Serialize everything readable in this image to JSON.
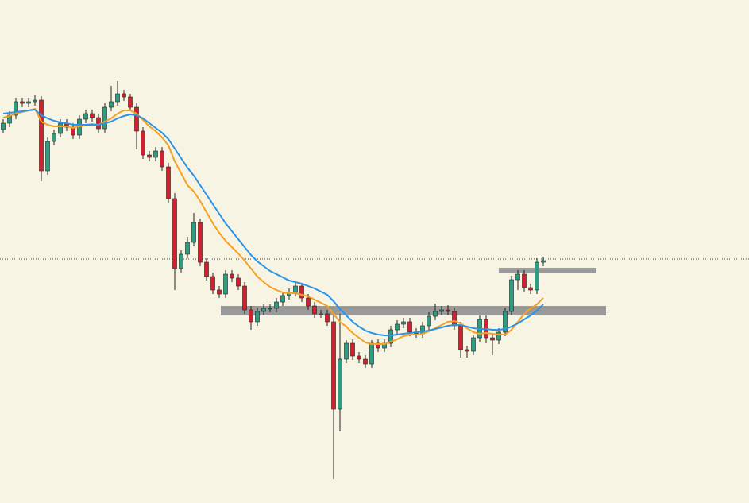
{
  "chart_data": {
    "type": "candlestick",
    "up_color": "#2a9d83",
    "down_color": "#d2202f",
    "wick_color": "#222222",
    "zone_color": "#9a9a9a",
    "level_color": "#444444",
    "open": [
      470,
      478,
      488,
      505,
      503,
      505,
      507,
      418,
      455,
      465,
      478,
      473,
      463,
      483,
      490,
      485,
      471,
      498,
      505,
      515,
      511,
      498,
      468,
      438,
      435,
      443,
      423,
      383,
      295,
      313,
      328,
      353,
      303,
      285,
      268,
      263,
      288,
      283,
      273,
      243,
      228,
      241,
      245,
      245,
      253,
      261,
      265,
      273,
      258,
      248,
      238,
      238,
      228,
      118,
      181,
      201,
      185,
      181,
      175,
      201,
      195,
      201,
      218,
      225,
      228,
      215,
      213,
      223,
      235,
      241,
      243,
      241,
      223,
      193,
      191,
      208,
      231,
      208,
      205,
      215,
      241,
      281,
      288,
      271,
      268,
      303
    ],
    "high": [
      483,
      493,
      510,
      510,
      510,
      513,
      512,
      460,
      470,
      483,
      483,
      478,
      488,
      495,
      495,
      490,
      503,
      525,
      531,
      520,
      515,
      503,
      473,
      443,
      448,
      448,
      428,
      390,
      318,
      335,
      365,
      358,
      308,
      290,
      273,
      293,
      293,
      288,
      278,
      248,
      246,
      250,
      250,
      258,
      266,
      270,
      278,
      276,
      263,
      253,
      243,
      243,
      238,
      238,
      205,
      206,
      190,
      186,
      205,
      206,
      206,
      223,
      230,
      233,
      233,
      220,
      228,
      240,
      251,
      248,
      249,
      246,
      228,
      198,
      211,
      236,
      236,
      213,
      220,
      246,
      286,
      293,
      293,
      276,
      308,
      310
    ],
    "low": [
      465,
      473,
      483,
      498,
      498,
      500,
      405,
      413,
      450,
      460,
      468,
      458,
      458,
      478,
      480,
      466,
      466,
      493,
      500,
      506,
      493,
      445,
      433,
      430,
      430,
      418,
      378,
      268,
      290,
      308,
      323,
      298,
      280,
      263,
      258,
      258,
      278,
      268,
      238,
      218,
      223,
      236,
      240,
      240,
      248,
      256,
      260,
      253,
      243,
      233,
      233,
      223,
      30,
      90,
      176,
      180,
      176,
      170,
      170,
      190,
      190,
      196,
      213,
      220,
      210,
      208,
      208,
      218,
      230,
      236,
      236,
      218,
      183,
      183,
      186,
      203,
      201,
      186,
      200,
      210,
      236,
      268,
      266,
      263,
      263,
      298
    ],
    "close": [
      478,
      488,
      505,
      503,
      505,
      507,
      418,
      455,
      465,
      478,
      473,
      463,
      483,
      490,
      485,
      471,
      498,
      505,
      515,
      511,
      498,
      468,
      438,
      435,
      443,
      423,
      383,
      295,
      313,
      328,
      353,
      303,
      285,
      268,
      263,
      288,
      283,
      273,
      243,
      228,
      241,
      245,
      245,
      253,
      261,
      265,
      273,
      258,
      248,
      238,
      238,
      228,
      118,
      181,
      201,
      185,
      181,
      175,
      201,
      195,
      201,
      218,
      225,
      228,
      215,
      213,
      223,
      235,
      241,
      243,
      241,
      223,
      193,
      191,
      208,
      231,
      208,
      205,
      215,
      241,
      281,
      288,
      271,
      268,
      303,
      305
    ],
    "series": [
      {
        "color": "#f5a020",
        "values": [
          485,
          487,
          490,
          492,
          494,
          496,
          480,
          476,
          474,
          474,
          474,
          472,
          474,
          476,
          477,
          476,
          480,
          484,
          490,
          494,
          494,
          490,
          482,
          474,
          468,
          460,
          450,
          430,
          415,
          400,
          392,
          380,
          366,
          352,
          340,
          330,
          322,
          314,
          305,
          295,
          285,
          278,
          272,
          268,
          265,
          264,
          264,
          262,
          260,
          256,
          252,
          248,
          238,
          228,
          222,
          214,
          208,
          202,
          200,
          200,
          200,
          203,
          206,
          210,
          212,
          212,
          213,
          216,
          220,
          224,
          228,
          229,
          226,
          220,
          215,
          213,
          214,
          213,
          212,
          212,
          218,
          228,
          238,
          245,
          250,
          258
        ]
      },
      {
        "color": "#2b94e6",
        "values": [
          490,
          491,
          492,
          493,
          494,
          495,
          488,
          484,
          481,
          479,
          478,
          476,
          476,
          476,
          476,
          476,
          478,
          480,
          484,
          487,
          489,
          488,
          484,
          478,
          472,
          466,
          458,
          446,
          434,
          422,
          412,
          400,
          388,
          376,
          364,
          352,
          342,
          332,
          322,
          312,
          304,
          298,
          292,
          288,
          284,
          280,
          278,
          276,
          273,
          270,
          266,
          262,
          254,
          244,
          236,
          228,
          222,
          217,
          214,
          212,
          211,
          211,
          212,
          213,
          214,
          215,
          216,
          217,
          219,
          221,
          223,
          224,
          224,
          222,
          220,
          219,
          219,
          218,
          218,
          219,
          222,
          226,
          231,
          236,
          242,
          250
        ]
      }
    ],
    "zones": [
      {
        "low": 236,
        "high": 248
      },
      {
        "low": 289,
        "high": 296
      }
    ],
    "level": 307
  }
}
